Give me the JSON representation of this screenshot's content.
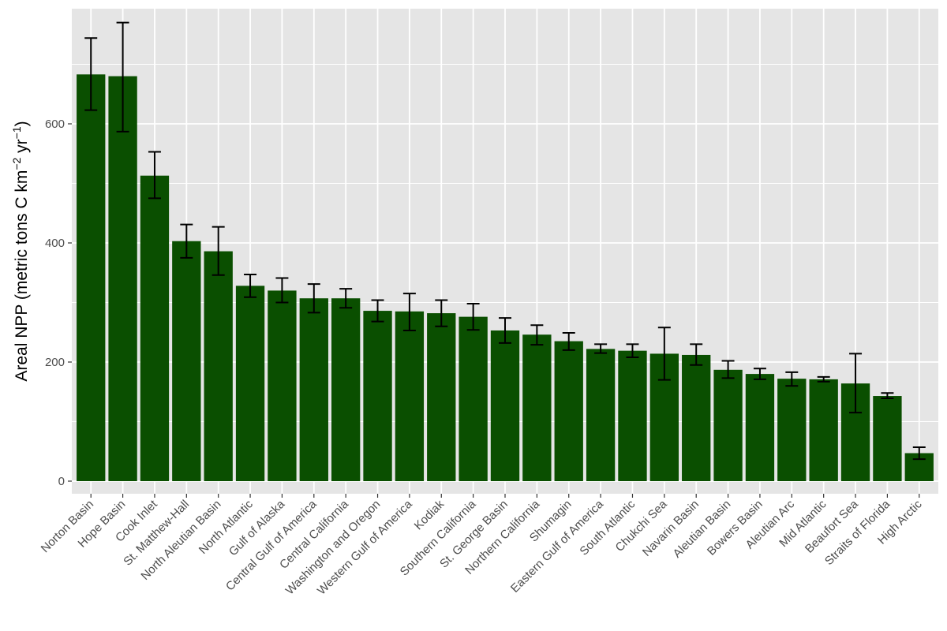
{
  "chart_data": {
    "type": "bar",
    "title": "",
    "xlabel": "",
    "ylabel": {
      "main": "Areal NPP (metric tons C km",
      "exp1": "−2",
      "mid": " yr",
      "exp2": "−1",
      "end": ")"
    },
    "ylim": [
      0,
      780
    ],
    "yticks": [
      0,
      200,
      400,
      600
    ],
    "grid": true,
    "legend": "none",
    "colors": {
      "bar": "#0a4f00",
      "panel": "#e5e5e5",
      "grid": "#ffffff",
      "errorbar": "#000000"
    },
    "categories": [
      "Norton Basin",
      "Hope Basin",
      "Cook Inlet",
      "St. Matthew-Hall",
      "North Aleutian Basin",
      "North Atlantic",
      "Gulf of Alaska",
      "Central Gulf of America",
      "Central California",
      "Washington and Oregon",
      "Western Gulf of America",
      "Kodiak",
      "Southern California",
      "St. George Basin",
      "Northern California",
      "Shumagin",
      "Eastern Gulf of America",
      "South Atlantic",
      "Chukchi Sea",
      "Navarin Basin",
      "Aleutian Basin",
      "Bowers Basin",
      "Aleutian Arc",
      "Mid Atlantic",
      "Beaufort Sea",
      "Straits of Florida",
      "High Arctic"
    ],
    "values": [
      683,
      680,
      513,
      403,
      386,
      328,
      320,
      307,
      307,
      286,
      285,
      282,
      276,
      253,
      246,
      235,
      222,
      219,
      214,
      212,
      187,
      180,
      172,
      171,
      164,
      143,
      47
    ],
    "error_low": [
      623,
      587,
      475,
      375,
      346,
      309,
      300,
      283,
      291,
      268,
      253,
      260,
      254,
      232,
      229,
      220,
      215,
      208,
      170,
      195,
      173,
      171,
      160,
      167,
      115,
      139,
      37
    ],
    "error_high": [
      744,
      770,
      553,
      431,
      427,
      347,
      341,
      331,
      323,
      304,
      315,
      304,
      298,
      274,
      262,
      249,
      230,
      230,
      258,
      230,
      202,
      189,
      183,
      175,
      214,
      148,
      57
    ]
  }
}
